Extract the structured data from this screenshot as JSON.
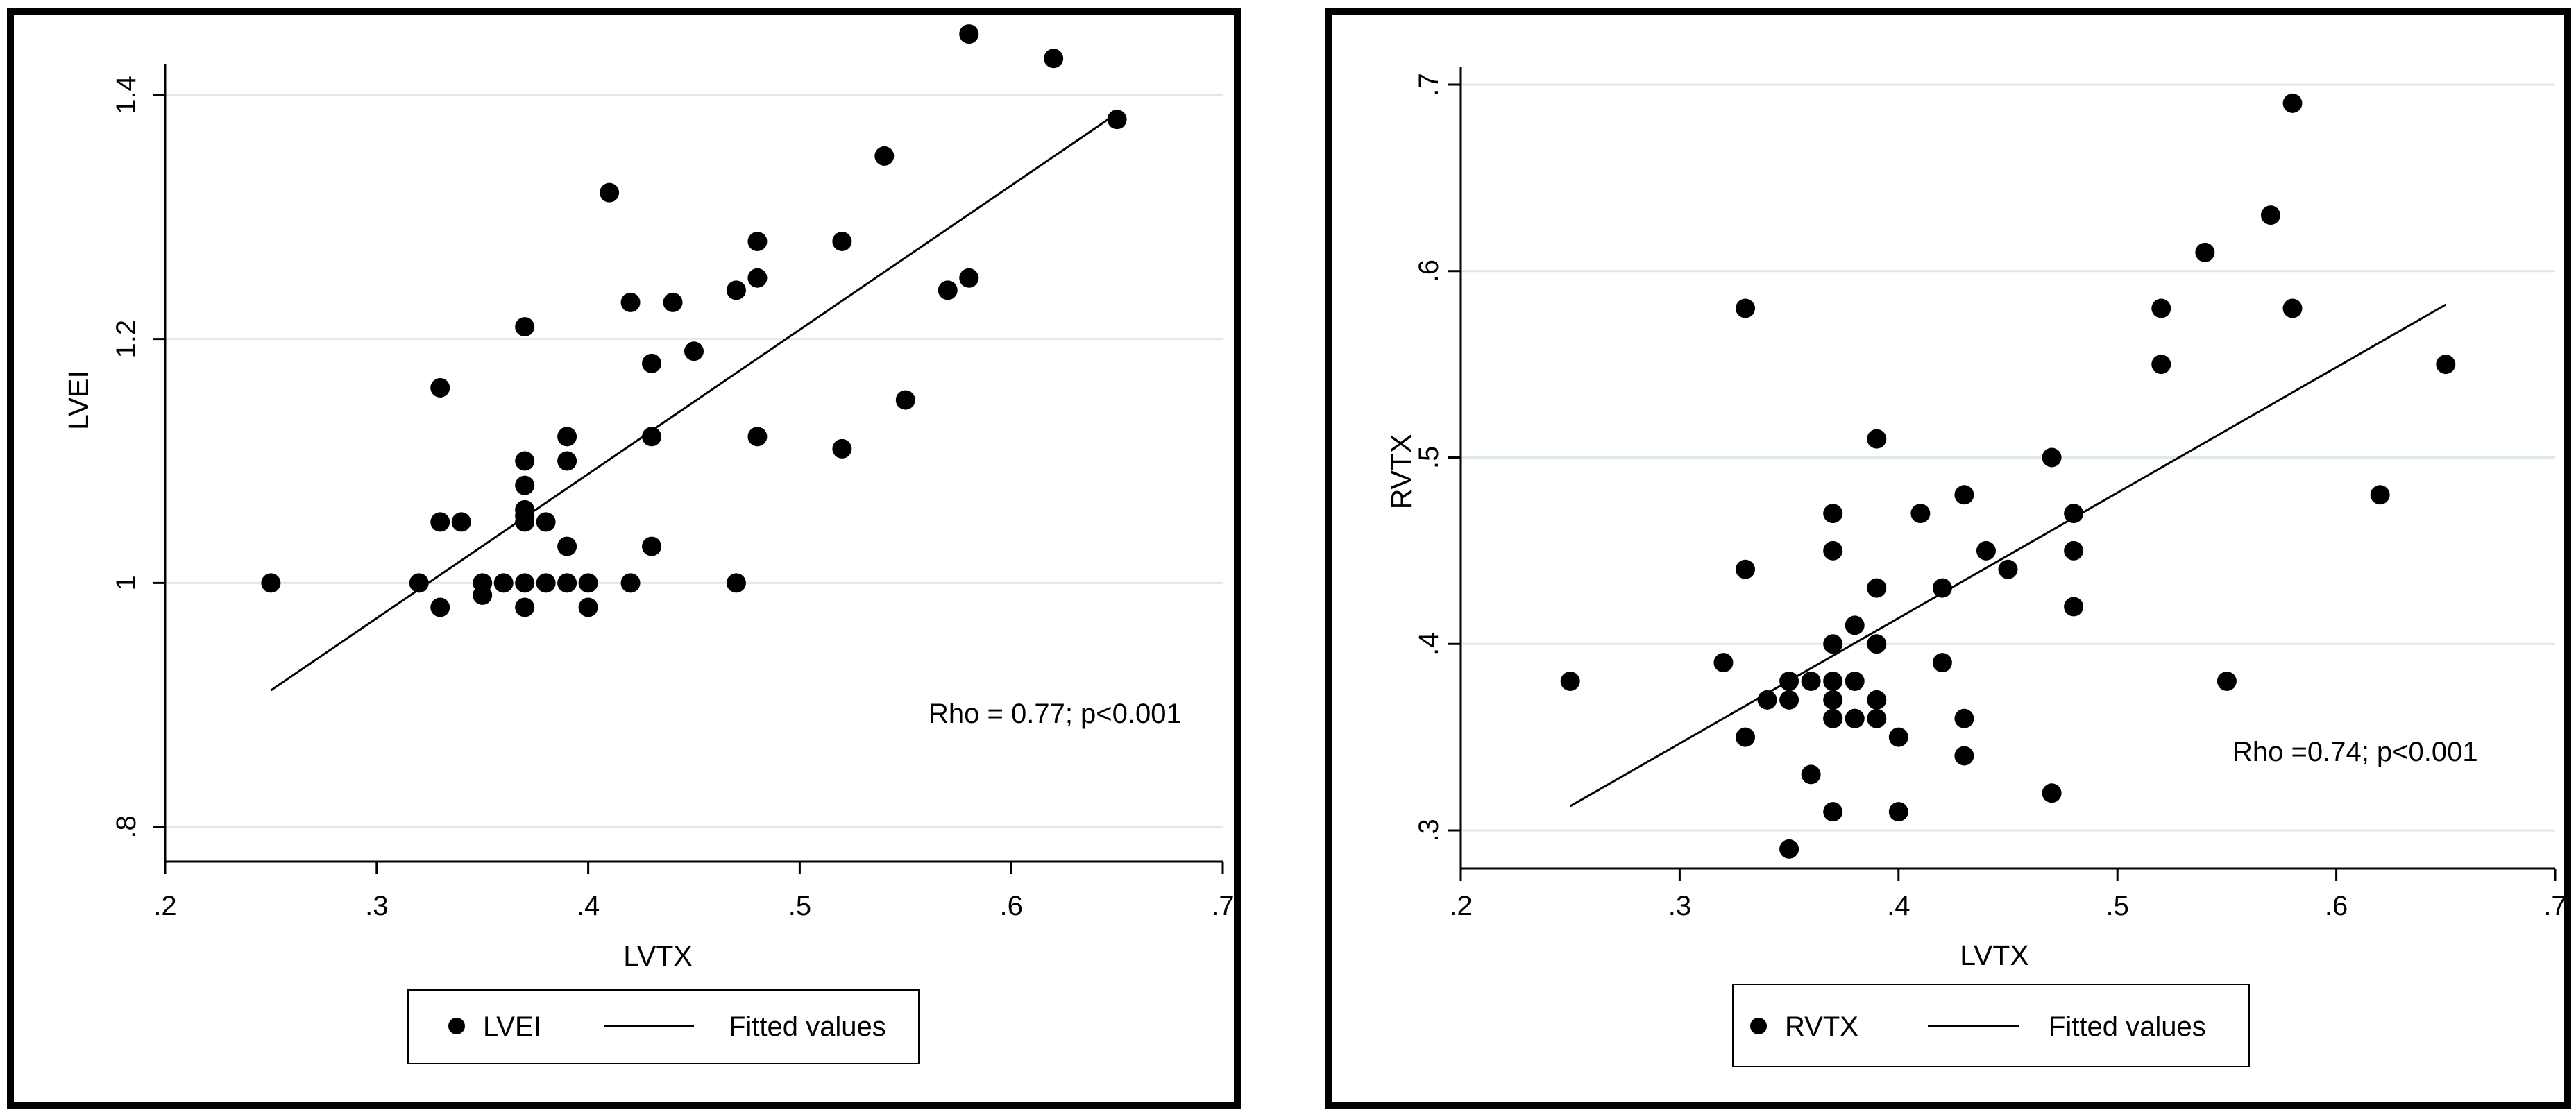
{
  "chart_data": [
    {
      "type": "scatter",
      "title": "",
      "xlabel": "LVTX",
      "ylabel": "LVEI",
      "xlim": [
        0.2,
        0.7
      ],
      "ylim": [
        0.8,
        1.4
      ],
      "xticks": [
        0.2,
        0.3,
        0.4,
        0.5,
        0.6,
        0.7
      ],
      "xtick_labels": [
        ".2",
        ".3",
        ".4",
        ".5",
        ".6",
        ".7"
      ],
      "yticks": [
        0.8,
        1.0,
        1.2,
        1.4
      ],
      "ytick_labels": [
        ".8",
        "1",
        "1.2",
        "1.4"
      ],
      "grid": true,
      "annotation": "Rho = 0.77; p<0.001",
      "legend": {
        "position": "bottom-center",
        "entries": [
          "LVEI",
          "Fitted values"
        ]
      },
      "series": [
        {
          "name": "LVEI",
          "kind": "points",
          "x": [
            0.25,
            0.32,
            0.33,
            0.33,
            0.33,
            0.34,
            0.35,
            0.35,
            0.36,
            0.37,
            0.37,
            0.37,
            0.37,
            0.37,
            0.37,
            0.37,
            0.37,
            0.38,
            0.38,
            0.39,
            0.39,
            0.39,
            0.39,
            0.4,
            0.4,
            0.41,
            0.42,
            0.42,
            0.43,
            0.43,
            0.43,
            0.44,
            0.45,
            0.47,
            0.47,
            0.48,
            0.48,
            0.48,
            0.52,
            0.52,
            0.54,
            0.55,
            0.57,
            0.58,
            0.58,
            0.62,
            0.65
          ],
          "y": [
            1.0,
            1.0,
            0.98,
            1.05,
            1.16,
            1.05,
            1.0,
            0.99,
            1.0,
            1.21,
            1.1,
            1.08,
            1.06,
            1.055,
            1.05,
            1.0,
            0.98,
            1.05,
            1.0,
            1.12,
            1.1,
            1.03,
            1.0,
            1.0,
            0.98,
            1.32,
            1.23,
            1.0,
            1.18,
            1.12,
            1.03,
            1.23,
            1.19,
            1.24,
            1.0,
            1.28,
            1.25,
            1.12,
            1.28,
            1.11,
            1.35,
            1.15,
            1.24,
            1.45,
            1.25,
            1.43,
            1.38
          ]
        },
        {
          "name": "Fitted values",
          "kind": "line",
          "x": [
            0.25,
            0.65
          ],
          "y": [
            0.912,
            1.385
          ]
        }
      ]
    },
    {
      "type": "scatter",
      "title": "",
      "xlabel": "LVTX",
      "ylabel": "RVTX",
      "xlim": [
        0.2,
        0.7
      ],
      "ylim": [
        0.3,
        0.7
      ],
      "xticks": [
        0.2,
        0.3,
        0.4,
        0.5,
        0.6,
        0.7
      ],
      "xtick_labels": [
        ".2",
        ".3",
        ".4",
        ".5",
        ".6",
        ".7"
      ],
      "yticks": [
        0.3,
        0.4,
        0.5,
        0.6,
        0.7
      ],
      "ytick_labels": [
        ".3",
        ".4",
        ".5",
        ".6",
        ".7"
      ],
      "grid": true,
      "annotation": "Rho =0.74; p<0.001",
      "legend": {
        "position": "bottom-center",
        "entries": [
          "RVTX",
          "Fitted values"
        ]
      },
      "series": [
        {
          "name": "RVTX",
          "kind": "points",
          "x": [
            0.25,
            0.32,
            0.33,
            0.33,
            0.33,
            0.34,
            0.35,
            0.35,
            0.35,
            0.36,
            0.36,
            0.37,
            0.37,
            0.37,
            0.37,
            0.37,
            0.37,
            0.37,
            0.37,
            0.38,
            0.38,
            0.38,
            0.38,
            0.39,
            0.39,
            0.39,
            0.39,
            0.39,
            0.4,
            0.4,
            0.41,
            0.42,
            0.42,
            0.43,
            0.43,
            0.43,
            0.44,
            0.45,
            0.47,
            0.47,
            0.48,
            0.48,
            0.48,
            0.52,
            0.52,
            0.54,
            0.55,
            0.57,
            0.58,
            0.58,
            0.62,
            0.65
          ],
          "y": [
            0.38,
            0.39,
            0.58,
            0.44,
            0.35,
            0.37,
            0.38,
            0.37,
            0.29,
            0.38,
            0.33,
            0.47,
            0.45,
            0.4,
            0.38,
            0.37,
            0.36,
            0.36,
            0.31,
            0.41,
            0.38,
            0.36,
            0.36,
            0.51,
            0.43,
            0.4,
            0.37,
            0.36,
            0.35,
            0.31,
            0.47,
            0.43,
            0.39,
            0.48,
            0.36,
            0.34,
            0.45,
            0.44,
            0.5,
            0.32,
            0.47,
            0.45,
            0.42,
            0.58,
            0.55,
            0.61,
            0.38,
            0.63,
            0.69,
            0.58,
            0.48,
            0.55
          ]
        },
        {
          "name": "Fitted values",
          "kind": "line",
          "x": [
            0.25,
            0.65
          ],
          "y": [
            0.313,
            0.582
          ]
        }
      ]
    }
  ]
}
